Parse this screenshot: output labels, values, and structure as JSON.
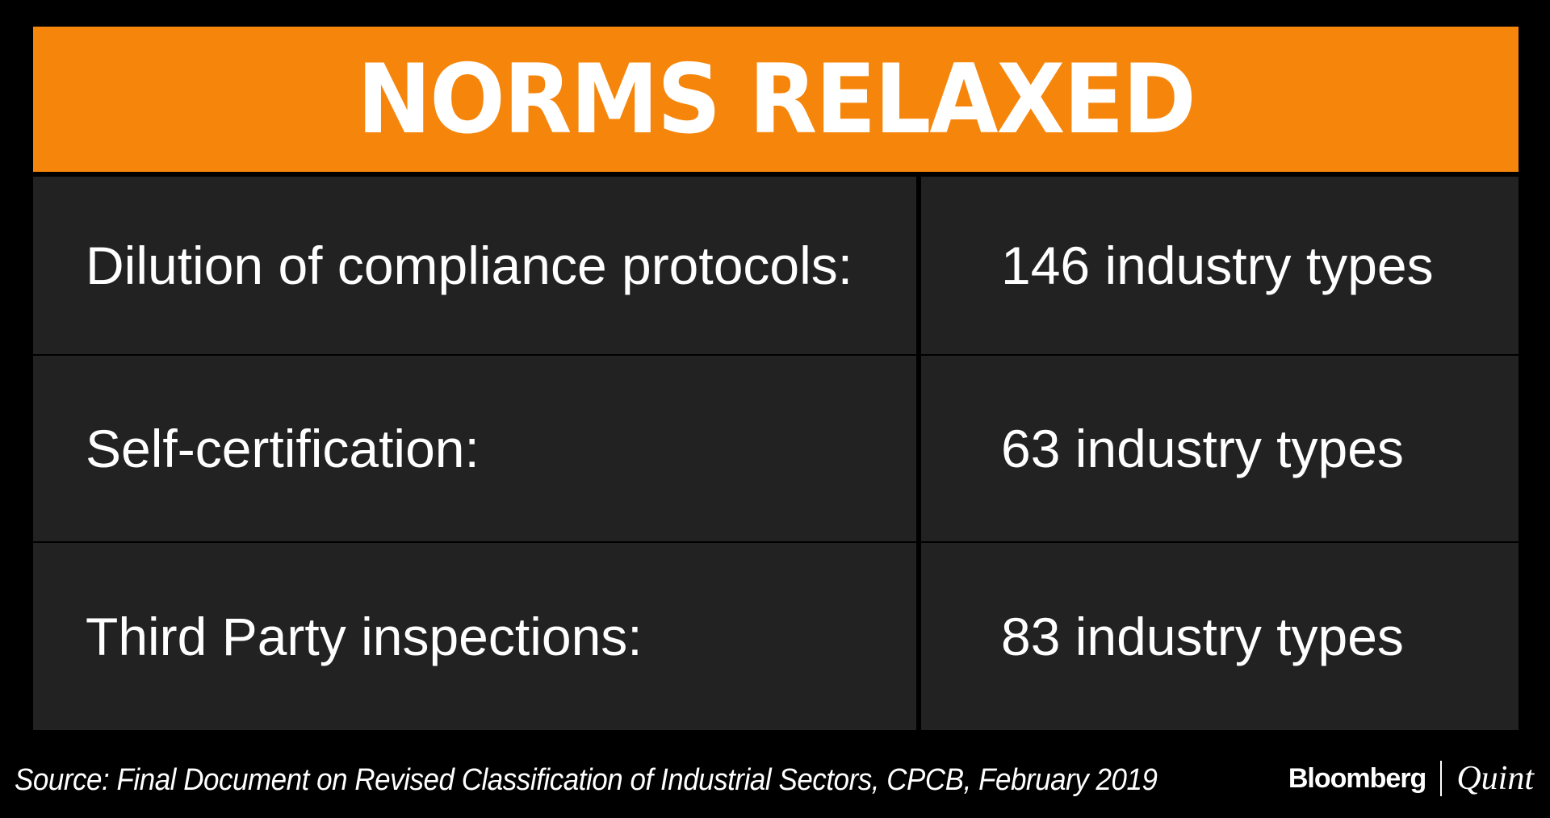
{
  "banner": {
    "title": "NORMS RELAXED",
    "color": "#f6860b"
  },
  "table": {
    "rows": [
      {
        "label": "Dilution of compliance protocols:",
        "value": "146 industry types"
      },
      {
        "label": "Self-certification:",
        "value": "63 industry types"
      },
      {
        "label": "Third Party inspections:",
        "value": "83 industry types"
      }
    ],
    "cell_color": "#222222"
  },
  "footer": {
    "source": "Source: Final Document on Revised Classification of Industrial Sectors, CPCB, February 2019",
    "logo_bloomberg": "Bloomberg",
    "logo_quint": "Quint"
  }
}
